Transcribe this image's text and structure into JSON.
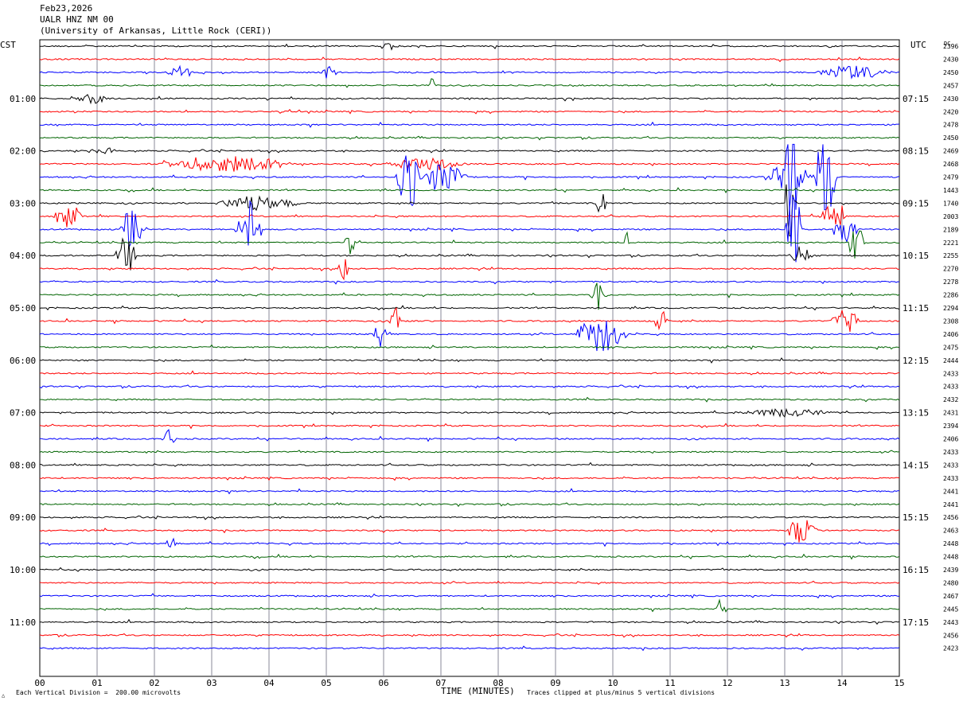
{
  "header": {
    "date": "Feb23,2026",
    "station": "UALR HNZ NM 00",
    "institution": "(University of Arkansas, Little Rock (CERI))"
  },
  "labels": {
    "left_tz": "CST",
    "right_tz": "UTC",
    "dc_label": "DC"
  },
  "footer": {
    "scale": "Each Vertical Division =  200.00 microvolts",
    "xlabel": "TIME (MINUTES)",
    "clip_note": "Traces clipped at plus/minus 5 vertical divisions"
  },
  "colors": {
    "trace_cycle": [
      "#000000",
      "#ff0000",
      "#0000ff",
      "#006400"
    ],
    "gridline": "#8a8a9a"
  },
  "chart_data": {
    "type": "line",
    "title": "UALR HNZ NM 00",
    "xlabel": "TIME (MINUTES)",
    "xlim": [
      0,
      15
    ],
    "x_ticks": [
      "00",
      "01",
      "02",
      "03",
      "04",
      "05",
      "06",
      "07",
      "08",
      "09",
      "10",
      "11",
      "12",
      "13",
      "14",
      "15"
    ],
    "left_hour_labels": [
      "01:00",
      "02:00",
      "03:00",
      "04:00",
      "05:00",
      "06:00",
      "07:00",
      "08:00",
      "09:00",
      "10:00",
      "11:00"
    ],
    "right_hour_labels": [
      "07:15",
      "08:15",
      "09:15",
      "10:15",
      "11:15",
      "12:15",
      "13:15",
      "14:15",
      "15:15",
      "16:15",
      "17:15"
    ],
    "dc_values": [
      "2396",
      "2430",
      "2450",
      "2457",
      "2430",
      "2420",
      "2478",
      "2450",
      "2469",
      "2468",
      "2479",
      "1443",
      "1740",
      "2003",
      "2189",
      "2221",
      "2255",
      "2270",
      "2278",
      "2286",
      "2294",
      "2308",
      "2406",
      "2475",
      "2444",
      "2433",
      "2433",
      "2432",
      "2431",
      "2394",
      "2406",
      "2433",
      "2433",
      "2433",
      "2441",
      "2441",
      "2456",
      "2463",
      "2448",
      "2448",
      "2439",
      "2480",
      "2467",
      "2445",
      "2443",
      "2456",
      "2423"
    ],
    "trace_count": 47,
    "events": [
      {
        "trace": 0,
        "x": 5.9,
        "amp": 0.25,
        "dur": 0.4
      },
      {
        "trace": 2,
        "x": 2.2,
        "amp": 0.6,
        "dur": 0.5
      },
      {
        "trace": 2,
        "x": 4.9,
        "amp": 0.6,
        "dur": 0.3
      },
      {
        "trace": 2,
        "x": 13.5,
        "amp": 0.5,
        "dur": 1.4
      },
      {
        "trace": 3,
        "x": 6.8,
        "amp": 0.6,
        "dur": 0.1
      },
      {
        "trace": 4,
        "x": 0.6,
        "amp": 0.4,
        "dur": 0.6
      },
      {
        "trace": 8,
        "x": 0.8,
        "amp": 0.3,
        "dur": 0.6
      },
      {
        "trace": 9,
        "x": 2.0,
        "amp": 0.6,
        "dur": 2.5
      },
      {
        "trace": 9,
        "x": 6.0,
        "amp": 0.5,
        "dur": 1.5
      },
      {
        "trace": 10,
        "x": 6.2,
        "amp": 2.4,
        "dur": 0.5
      },
      {
        "trace": 10,
        "x": 6.5,
        "amp": 1.2,
        "dur": 1.0
      },
      {
        "trace": 10,
        "x": 12.6,
        "amp": 1.0,
        "dur": 1.0
      },
      {
        "trace": 10,
        "x": 13.0,
        "amp": 5.0,
        "dur": 0.25
      },
      {
        "trace": 10,
        "x": 13.5,
        "amp": 4.0,
        "dur": 0.4
      },
      {
        "trace": 12,
        "x": 3.0,
        "amp": 0.5,
        "dur": 1.6
      },
      {
        "trace": 12,
        "x": 9.7,
        "amp": 0.9,
        "dur": 0.2
      },
      {
        "trace": 12,
        "x": 13.0,
        "amp": 4.5,
        "dur": 0.2
      },
      {
        "trace": 13,
        "x": 0.2,
        "amp": 1.0,
        "dur": 0.6
      },
      {
        "trace": 13,
        "x": 13.6,
        "amp": 1.5,
        "dur": 0.5
      },
      {
        "trace": 14,
        "x": 1.4,
        "amp": 2.0,
        "dur": 0.4
      },
      {
        "trace": 14,
        "x": 3.4,
        "amp": 2.2,
        "dur": 0.5
      },
      {
        "trace": 14,
        "x": 13.0,
        "amp": 3.5,
        "dur": 0.3
      },
      {
        "trace": 14,
        "x": 13.8,
        "amp": 1.2,
        "dur": 0.5
      },
      {
        "trace": 15,
        "x": 5.3,
        "amp": 1.0,
        "dur": 0.3
      },
      {
        "trace": 15,
        "x": 10.2,
        "amp": 1.0,
        "dur": 0.1
      },
      {
        "trace": 15,
        "x": 14.1,
        "amp": 1.8,
        "dur": 0.3
      },
      {
        "trace": 16,
        "x": 1.3,
        "amp": 1.5,
        "dur": 0.4
      },
      {
        "trace": 16,
        "x": 13.0,
        "amp": 0.8,
        "dur": 0.5
      },
      {
        "trace": 17,
        "x": 5.2,
        "amp": 1.2,
        "dur": 0.2
      },
      {
        "trace": 19,
        "x": 9.6,
        "amp": 1.2,
        "dur": 0.3
      },
      {
        "trace": 21,
        "x": 6.1,
        "amp": 1.1,
        "dur": 0.2
      },
      {
        "trace": 21,
        "x": 10.7,
        "amp": 0.9,
        "dur": 0.3
      },
      {
        "trace": 21,
        "x": 13.8,
        "amp": 1.1,
        "dur": 0.5
      },
      {
        "trace": 22,
        "x": 5.8,
        "amp": 1.0,
        "dur": 0.3
      },
      {
        "trace": 22,
        "x": 9.3,
        "amp": 1.4,
        "dur": 1.0
      },
      {
        "trace": 28,
        "x": 12.0,
        "amp": 0.3,
        "dur": 2.0
      },
      {
        "trace": 30,
        "x": 2.1,
        "amp": 0.6,
        "dur": 0.3
      },
      {
        "trace": 37,
        "x": 13.0,
        "amp": 1.0,
        "dur": 0.6
      },
      {
        "trace": 38,
        "x": 2.2,
        "amp": 0.7,
        "dur": 0.2
      },
      {
        "trace": 43,
        "x": 11.8,
        "amp": 0.9,
        "dur": 0.2
      }
    ],
    "grid": true
  }
}
